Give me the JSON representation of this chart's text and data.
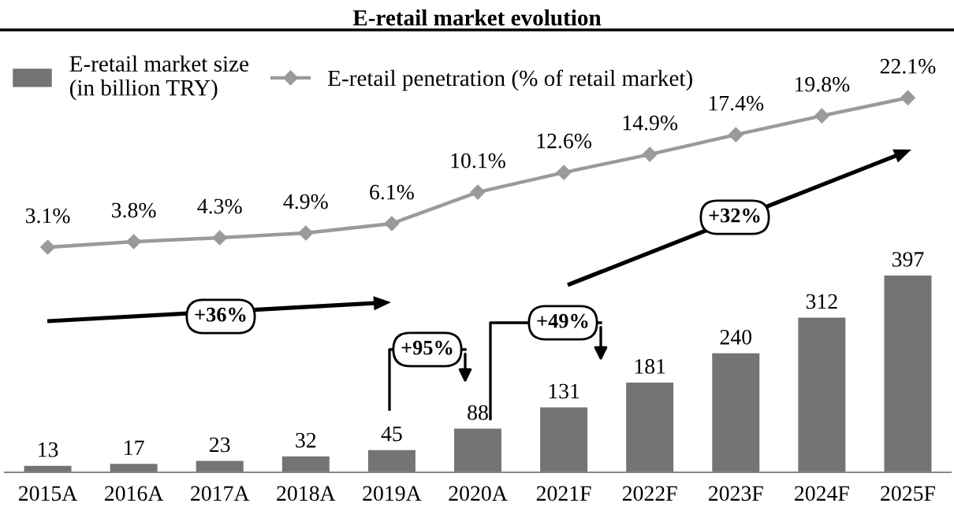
{
  "chart_data": [
    {
      "type": "line",
      "title": "E-retail market evolution",
      "categories": [
        null,
        null,
        null,
        null,
        null,
        null,
        null,
        null,
        null,
        null,
        null
      ],
      "series": [
        {
          "name": "E-retail penetration (% of retail market)",
          "color": "#9a9a9a",
          "values": [
            3.1,
            3.8,
            4.3,
            4.9,
            6.1,
            10.1,
            12.6,
            14.9,
            17.4,
            19.8,
            22.1
          ],
          "value_labels": [
            "3.1%",
            "3.8%",
            "4.3%",
            "4.9%",
            "6.1%",
            "10.1%",
            "12.6%",
            "14.9%",
            "17.4%",
            "19.8%",
            "22.1%"
          ]
        }
      ],
      "marker": "diamond",
      "legend": "top left",
      "tick_labels": false
    },
    {
      "type": "bar",
      "categories": [
        "2015A",
        "2016A",
        "2017A",
        "2018A",
        "2019A",
        "2020A",
        "2021F",
        "2022F",
        "2023F",
        "2024F",
        "2025F"
      ],
      "series": [
        {
          "name": "E-retail market size\n(in billion TRY)",
          "color": "#747474",
          "values": [
            13,
            17,
            23,
            32,
            45,
            88,
            131,
            181,
            240,
            312,
            397
          ]
        }
      ],
      "data_labels": true,
      "legend": "top left",
      "tick_labels": "x",
      "annotations": [
        "+36%",
        "+95%",
        "+49%",
        "+32%"
      ]
    }
  ]
}
